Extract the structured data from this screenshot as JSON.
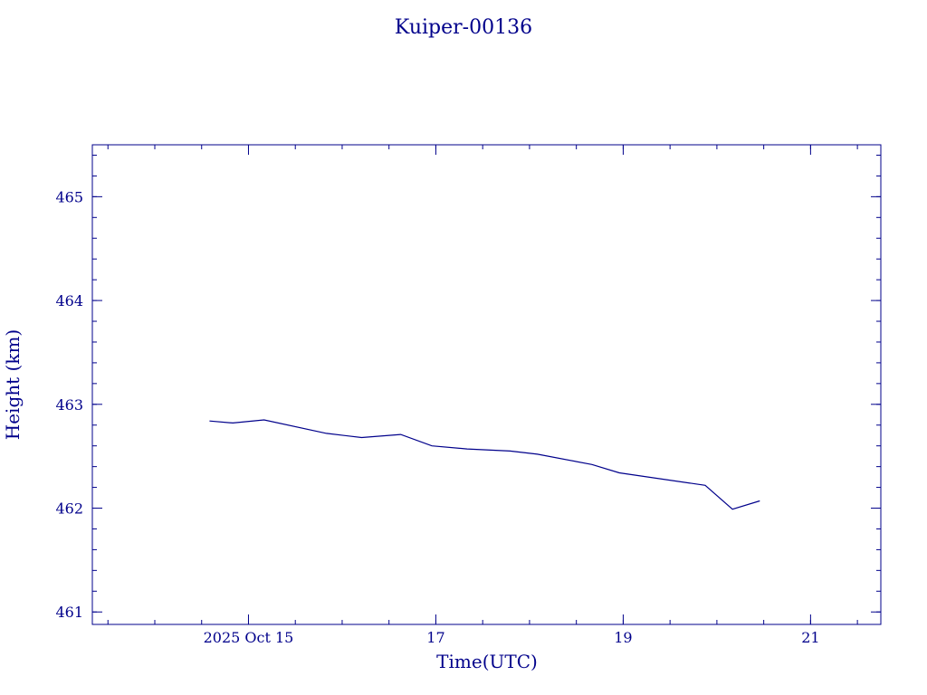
{
  "chart_data": {
    "type": "line",
    "title": "Kuiper-00136",
    "xlabel": "Time(UTC)",
    "ylabel": "Height (km)",
    "x_unit": "days",
    "xlim": [
      "2025-10-13T08:00",
      "2025-10-21T18:00"
    ],
    "ylim": [
      460.88,
      465.5
    ],
    "x_ticks": [
      {
        "t": "2025-10-15T00:00",
        "label": "2025 Oct 15"
      },
      {
        "t": "2025-10-17T00:00",
        "label": "17"
      },
      {
        "t": "2025-10-19T00:00",
        "label": "19"
      },
      {
        "t": "2025-10-21T00:00",
        "label": "21"
      }
    ],
    "y_ticks": [
      461,
      462,
      463,
      464,
      465
    ],
    "grid": false,
    "series": [
      {
        "x": [
          "2025-10-14T14:00",
          "2025-10-14T20:00",
          "2025-10-15T04:00",
          "2025-10-15T20:00",
          "2025-10-16T05:00",
          "2025-10-16T15:00",
          "2025-10-16T23:00",
          "2025-10-17T08:00",
          "2025-10-17T19:00",
          "2025-10-18T02:00",
          "2025-10-18T16:00",
          "2025-10-18T23:00",
          "2025-10-19T21:00",
          "2025-10-20T04:00",
          "2025-10-20T11:00"
        ],
        "values": [
          462.84,
          462.82,
          462.85,
          462.72,
          462.68,
          462.71,
          462.6,
          462.57,
          462.55,
          462.52,
          462.42,
          462.34,
          462.22,
          461.99,
          462.07
        ]
      }
    ]
  }
}
